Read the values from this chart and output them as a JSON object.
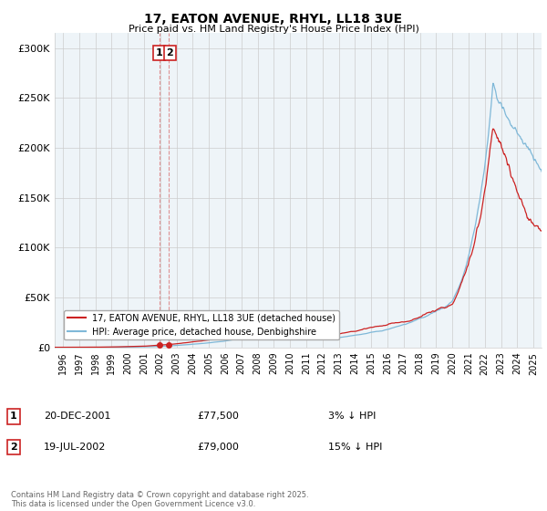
{
  "title": "17, EATON AVENUE, RHYL, LL18 3UE",
  "subtitle": "Price paid vs. HM Land Registry's House Price Index (HPI)",
  "ylabel_ticks": [
    "£0",
    "£50K",
    "£100K",
    "£150K",
    "£200K",
    "£250K",
    "£300K"
  ],
  "ytick_values": [
    0,
    50000,
    100000,
    150000,
    200000,
    250000,
    300000
  ],
  "ylim": [
    0,
    315000
  ],
  "xlim_start": 1995.5,
  "xlim_end": 2025.5,
  "hpi_color": "#7fb8d8",
  "price_color": "#cc2222",
  "vline_color": "#dd8888",
  "annotation_box_color": "#cc2222",
  "purchase1_x": 2001.97,
  "purchase1_y": 77500,
  "purchase2_x": 2002.55,
  "purchase2_y": 79000,
  "legend_line1": "17, EATON AVENUE, RHYL, LL18 3UE (detached house)",
  "legend_line2": "HPI: Average price, detached house, Denbighshire",
  "note1_label": "1",
  "note1_date": "20-DEC-2001",
  "note1_price": "£77,500",
  "note1_pct": "3% ↓ HPI",
  "note2_label": "2",
  "note2_date": "19-JUL-2002",
  "note2_price": "£79,000",
  "note2_pct": "15% ↓ HPI",
  "footer": "Contains HM Land Registry data © Crown copyright and database right 2025.\nThis data is licensed under the Open Government Licence v3.0.",
  "bg_color": "#ffffff",
  "grid_color": "#cccccc"
}
